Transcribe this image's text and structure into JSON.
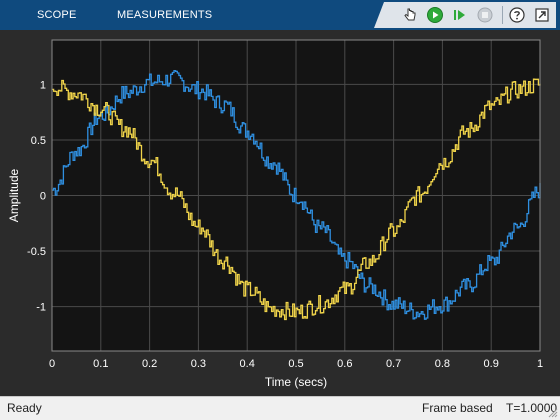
{
  "toolstrip": {
    "tabs": [
      "SCOPE",
      "MEASUREMENTS"
    ],
    "buttons": [
      "navigate-icon",
      "run-icon",
      "step-forward-icon",
      "stop-icon",
      "help-icon",
      "undock-icon"
    ],
    "colors": {
      "background": "#0f4a7e",
      "run": "#2eaa3a"
    }
  },
  "chart_data": {
    "type": "line",
    "xlabel": "Time (secs)",
    "ylabel": "Amplitude",
    "xlim": [
      0,
      1
    ],
    "ylim": [
      -1.4,
      1.4
    ],
    "xticks": [
      0,
      0.1,
      0.2,
      0.3,
      0.4,
      0.5,
      0.6,
      0.7,
      0.8,
      0.9,
      1
    ],
    "xtick_labels": [
      "0",
      "0.1",
      "0.2",
      "0.3",
      "0.4",
      "0.5",
      "0.6",
      "0.7",
      "0.8",
      "0.9",
      "1"
    ],
    "yticks": [
      1,
      0.5,
      0,
      -0.5,
      -1
    ],
    "ytick_labels": [
      "1",
      "0.5",
      "0",
      "-0.5",
      "-1"
    ],
    "grid": true,
    "background": "#141414",
    "series": [
      {
        "color": "#2f8fe0",
        "x": [
          0,
          0.05,
          0.1,
          0.15,
          0.2,
          0.25,
          0.3,
          0.35,
          0.4,
          0.45,
          0.5,
          0.55,
          0.6,
          0.65,
          0.7,
          0.75,
          0.8,
          0.85,
          0.9,
          0.95,
          1
        ],
        "y": [
          0.05,
          0.4,
          0.72,
          0.92,
          1.02,
          1.05,
          0.95,
          0.82,
          0.58,
          0.3,
          0.0,
          -0.3,
          -0.58,
          -0.82,
          -0.98,
          -1.05,
          -0.98,
          -0.82,
          -0.6,
          -0.3,
          0.05
        ]
      },
      {
        "color": "#f0d44a",
        "x": [
          0,
          0.05,
          0.1,
          0.15,
          0.2,
          0.25,
          0.3,
          0.35,
          0.4,
          0.45,
          0.5,
          0.55,
          0.6,
          0.65,
          0.7,
          0.75,
          0.8,
          0.85,
          0.9,
          0.95,
          1
        ],
        "y": [
          0.98,
          0.92,
          0.78,
          0.6,
          0.32,
          0.02,
          -0.28,
          -0.58,
          -0.85,
          -1.02,
          -1.05,
          -0.98,
          -0.85,
          -0.6,
          -0.32,
          0.0,
          0.3,
          0.58,
          0.8,
          0.95,
          1.0
        ]
      }
    ]
  },
  "status": {
    "left": "Ready",
    "mode": "Frame based",
    "time": "T=1.0000"
  }
}
